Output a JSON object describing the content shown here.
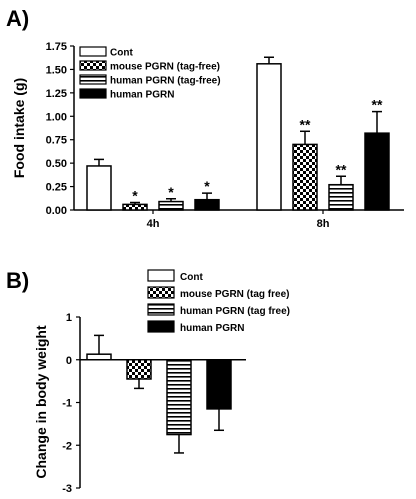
{
  "chart_data": [
    {
      "panel": "A)",
      "type": "bar",
      "ylabel": "Food intake (g)",
      "ylim": [
        0,
        1.75
      ],
      "yticks": [
        "0.00",
        "0.25",
        "0.50",
        "0.75",
        "1.00",
        "1.25",
        "1.50",
        "1.75"
      ],
      "categories": [
        "4h",
        "8h"
      ],
      "legend_position": "top-left",
      "series": [
        {
          "name": "Cont",
          "pattern": "white",
          "values": [
            0.47,
            1.56
          ],
          "errors": [
            0.07,
            0.07
          ],
          "sig": [
            "",
            ""
          ]
        },
        {
          "name": "mouse PGRN (tag-free)",
          "pattern": "checker",
          "values": [
            0.06,
            0.7
          ],
          "errors": [
            0.02,
            0.14
          ],
          "sig": [
            "*",
            "**"
          ]
        },
        {
          "name": "human PGRN (tag-free)",
          "pattern": "hstripe",
          "values": [
            0.09,
            0.27
          ],
          "errors": [
            0.03,
            0.09
          ],
          "sig": [
            "*",
            "**"
          ]
        },
        {
          "name": "human PGRN",
          "pattern": "black",
          "values": [
            0.11,
            0.82
          ],
          "errors": [
            0.07,
            0.23
          ],
          "sig": [
            "*",
            "**"
          ]
        }
      ]
    },
    {
      "panel": "B)",
      "type": "bar",
      "ylabel": "Change in body weight",
      "ylim": [
        -3,
        1
      ],
      "yticks": [
        "-3",
        "-2",
        "-1",
        "0",
        "1"
      ],
      "legend_position": "top",
      "series": [
        {
          "name": "Cont",
          "pattern": "white",
          "value": 0.13,
          "error": 0.44,
          "error_dir": "up"
        },
        {
          "name": "mouse PGRN (tag free)",
          "pattern": "checker",
          "value": -0.45,
          "error": 0.22,
          "error_dir": "down"
        },
        {
          "name": "human PGRN (tag free)",
          "pattern": "hstripe",
          "value": -1.75,
          "error": 0.43,
          "error_dir": "down"
        },
        {
          "name": "human PGRN",
          "pattern": "black",
          "value": -1.15,
          "error": 0.5,
          "error_dir": "down"
        }
      ]
    }
  ]
}
